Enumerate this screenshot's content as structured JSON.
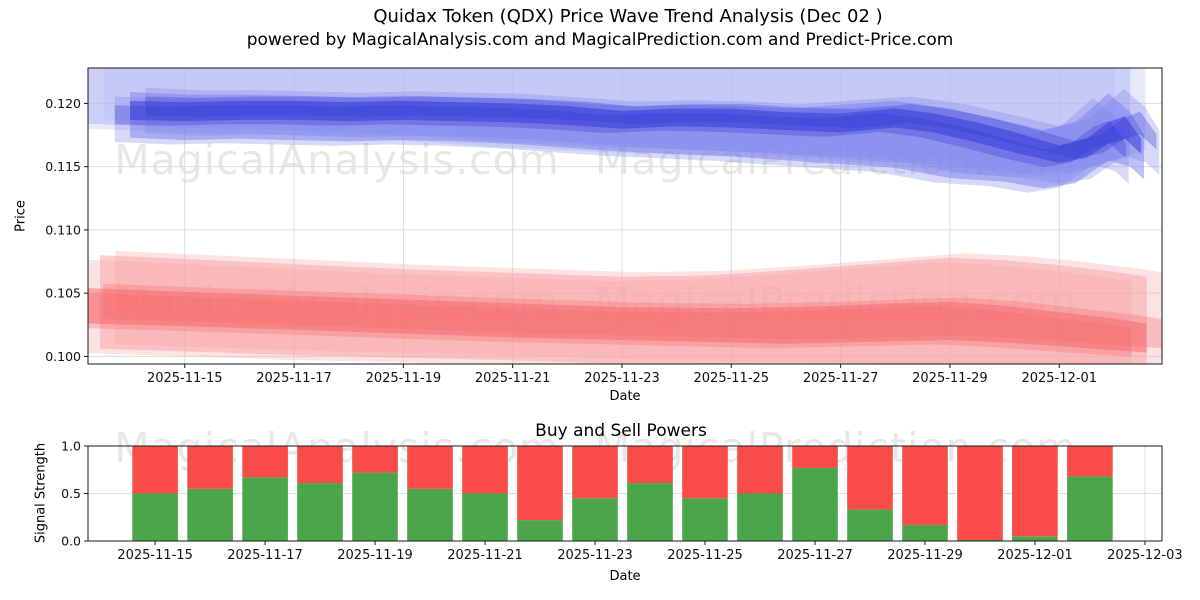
{
  "header": {
    "title": "Quidax Token (QDX) Price Wave Trend Analysis (Dec 02 )",
    "subtitle": "powered by MagicalAnalysis.com and MagicalPrediction.com and Predict-Price.com"
  },
  "watermarks": {
    "left": "MagicalAnalysis.com",
    "right": "MagicalPrediction.com"
  },
  "chart_data": [
    {
      "type": "area",
      "title": "Quidax Token (QDX) Price Wave Trend Analysis (Dec 02 )",
      "xlabel": "Date",
      "ylabel": "Price",
      "xlim": [
        13.23,
        32.88
      ],
      "ylim": [
        0.0994,
        0.1228
      ],
      "grid": true,
      "xtick_days": [
        15,
        17,
        19,
        21,
        23,
        25,
        27,
        29,
        31
      ],
      "xtick_labels": [
        "2025-11-15",
        "2025-11-17",
        "2025-11-19",
        "2025-11-21",
        "2025-11-23",
        "2025-11-25",
        "2025-11-27",
        "2025-11-29",
        "2025-12-01"
      ],
      "ytick_values": [
        0.1,
        0.105,
        0.11,
        0.115,
        0.12
      ],
      "ytick_labels": [
        "0.100",
        "0.105",
        "0.110",
        "0.115",
        "0.120"
      ],
      "bands": [
        {
          "name": "upper-wave-outer",
          "color": "#b7bbf3",
          "opacity": 1,
          "days": [
            13.23,
            15,
            17,
            19,
            21,
            23,
            25,
            27,
            28.5,
            29.5,
            30.5,
            31.3,
            32.0,
            32.3
          ],
          "lower": [
            0.1184,
            0.1181,
            0.1179,
            0.1175,
            0.1169,
            0.1165,
            0.1162,
            0.1159,
            0.1153,
            0.1148,
            0.1145,
            0.1146,
            0.1155,
            0.116
          ],
          "upper": [
            0.1232,
            0.1232,
            0.1232,
            0.1232,
            0.1232,
            0.1232,
            0.1232,
            0.1232,
            0.1232,
            0.1232,
            0.1232,
            0.1232,
            0.1232,
            0.1232
          ]
        },
        {
          "name": "upper-wave-mid",
          "color": "#7a80ec",
          "opacity": 0.9,
          "days": [
            14,
            15,
            16,
            17,
            18,
            19,
            20,
            21,
            22,
            23,
            24,
            25,
            26,
            27,
            28,
            29,
            30,
            30.7,
            31.3,
            31.9,
            32.3,
            32.55
          ],
          "lower": [
            0.1173,
            0.1171,
            0.1172,
            0.1171,
            0.117,
            0.1171,
            0.117,
            0.1168,
            0.1165,
            0.1162,
            0.116,
            0.1158,
            0.1155,
            0.1152,
            0.1149,
            0.1141,
            0.1138,
            0.1133,
            0.1137,
            0.1155,
            0.115,
            0.114
          ],
          "upper": [
            0.1209,
            0.1207,
            0.1207,
            0.1206,
            0.1205,
            0.1206,
            0.1205,
            0.1204,
            0.1201,
            0.1198,
            0.1199,
            0.1198,
            0.1196,
            0.1199,
            0.1202,
            0.1196,
            0.1186,
            0.1179,
            0.1185,
            0.1208,
            0.1193,
            0.1175
          ]
        },
        {
          "name": "upper-wave-core",
          "color": "#3339d6",
          "opacity": 0.95,
          "days": [
            14,
            15,
            16,
            17,
            18,
            19,
            20,
            21,
            22,
            23,
            24,
            25,
            26,
            27,
            28,
            28.7,
            29.5,
            30.2,
            31,
            31.5,
            31.9,
            32.2,
            32.5
          ],
          "lower": [
            0.1187,
            0.1186,
            0.1187,
            0.1187,
            0.1186,
            0.1187,
            0.1186,
            0.1185,
            0.1183,
            0.118,
            0.1182,
            0.1181,
            0.1179,
            0.1177,
            0.1181,
            0.1177,
            0.1169,
            0.1161,
            0.1153,
            0.1157,
            0.1168,
            0.1172,
            0.116
          ],
          "upper": [
            0.1202,
            0.1201,
            0.1202,
            0.1202,
            0.1201,
            0.1202,
            0.1201,
            0.12,
            0.1198,
            0.1194,
            0.1196,
            0.1196,
            0.1193,
            0.1192,
            0.1196,
            0.1192,
            0.1185,
            0.1177,
            0.1167,
            0.1172,
            0.1185,
            0.119,
            0.1172
          ]
        },
        {
          "name": "lower-wave-outer",
          "color": "#f8a8a9",
          "opacity": 1,
          "days": [
            13.45,
            15,
            17,
            19,
            21,
            23,
            24.5,
            26,
            27.5,
            29,
            30,
            31,
            32,
            32.6
          ],
          "upper": [
            0.108,
            0.1077,
            0.1073,
            0.1069,
            0.1066,
            0.1063,
            0.1064,
            0.1068,
            0.1073,
            0.1078,
            0.1076,
            0.1072,
            0.1067,
            0.1063
          ],
          "lower": [
            0.1006,
            0.1004,
            0.1001,
            0.0999,
            0.0997,
            0.0994,
            0.0993,
            0.0992,
            0.0991,
            0.0991,
            0.0991,
            0.099,
            0.0989,
            0.0988
          ]
        },
        {
          "name": "lower-wave-core",
          "color": "#f5696c",
          "opacity": 0.95,
          "days": [
            13.23,
            15,
            17,
            19,
            21,
            23,
            25,
            26,
            27,
            28,
            29,
            30,
            31,
            32,
            32.6
          ],
          "upper": [
            0.1054,
            0.1051,
            0.1048,
            0.1045,
            0.1042,
            0.1039,
            0.1038,
            0.1039,
            0.104,
            0.1042,
            0.1043,
            0.104,
            0.1035,
            0.103,
            0.1026
          ],
          "lower": [
            0.1026,
            0.1024,
            0.1021,
            0.1018,
            0.1015,
            0.1013,
            0.1011,
            0.101,
            0.1011,
            0.1012,
            0.1013,
            0.1011,
            0.1008,
            0.1005,
            0.1003
          ]
        }
      ]
    },
    {
      "type": "bar",
      "title": "Buy and Sell Powers",
      "xlabel": "Date",
      "ylabel": "Signal Strength",
      "xlim": [
        13.78,
        33.31
      ],
      "ylim": [
        0,
        1.0
      ],
      "grid": true,
      "bar_width_days": 0.83,
      "categories": [
        "2025-11-15",
        "2025-11-16",
        "2025-11-17",
        "2025-11-18",
        "2025-11-19",
        "2025-11-20",
        "2025-11-21",
        "2025-11-22",
        "2025-11-23",
        "2025-11-24",
        "2025-11-25",
        "2025-11-26",
        "2025-11-27",
        "2025-11-28",
        "2025-11-29",
        "2025-11-30",
        "2025-12-01",
        "2025-12-02"
      ],
      "category_days": [
        15,
        16,
        17,
        18,
        19,
        20,
        21,
        22,
        23,
        24,
        25,
        26,
        27,
        28,
        29,
        30,
        31,
        32
      ],
      "series": [
        {
          "name": "Buy",
          "color": "#4ba64b",
          "values": [
            0.5,
            0.55,
            0.67,
            0.61,
            0.72,
            0.55,
            0.5,
            0.22,
            0.45,
            0.61,
            0.45,
            0.5,
            0.77,
            0.33,
            0.17,
            0.01,
            0.05,
            0.68
          ]
        },
        {
          "name": "Sell",
          "color": "#fa4b4b",
          "values": [
            0.5,
            0.45,
            0.33,
            0.39,
            0.28,
            0.45,
            0.5,
            0.78,
            0.55,
            0.39,
            0.55,
            0.5,
            0.23,
            0.67,
            0.83,
            0.99,
            0.95,
            0.32
          ]
        }
      ],
      "xtick_days": [
        15,
        17,
        19,
        21,
        23,
        25,
        27,
        29,
        31,
        33
      ],
      "xtick_labels": [
        "2025-11-15",
        "2025-11-17",
        "2025-11-19",
        "2025-11-21",
        "2025-11-23",
        "2025-11-25",
        "2025-11-27",
        "2025-11-29",
        "2025-12-01",
        "2025-12-03"
      ],
      "ytick_values": [
        0.0,
        0.5,
        1.0
      ],
      "ytick_labels": [
        "0.0",
        "0.5",
        "1.0"
      ]
    }
  ]
}
